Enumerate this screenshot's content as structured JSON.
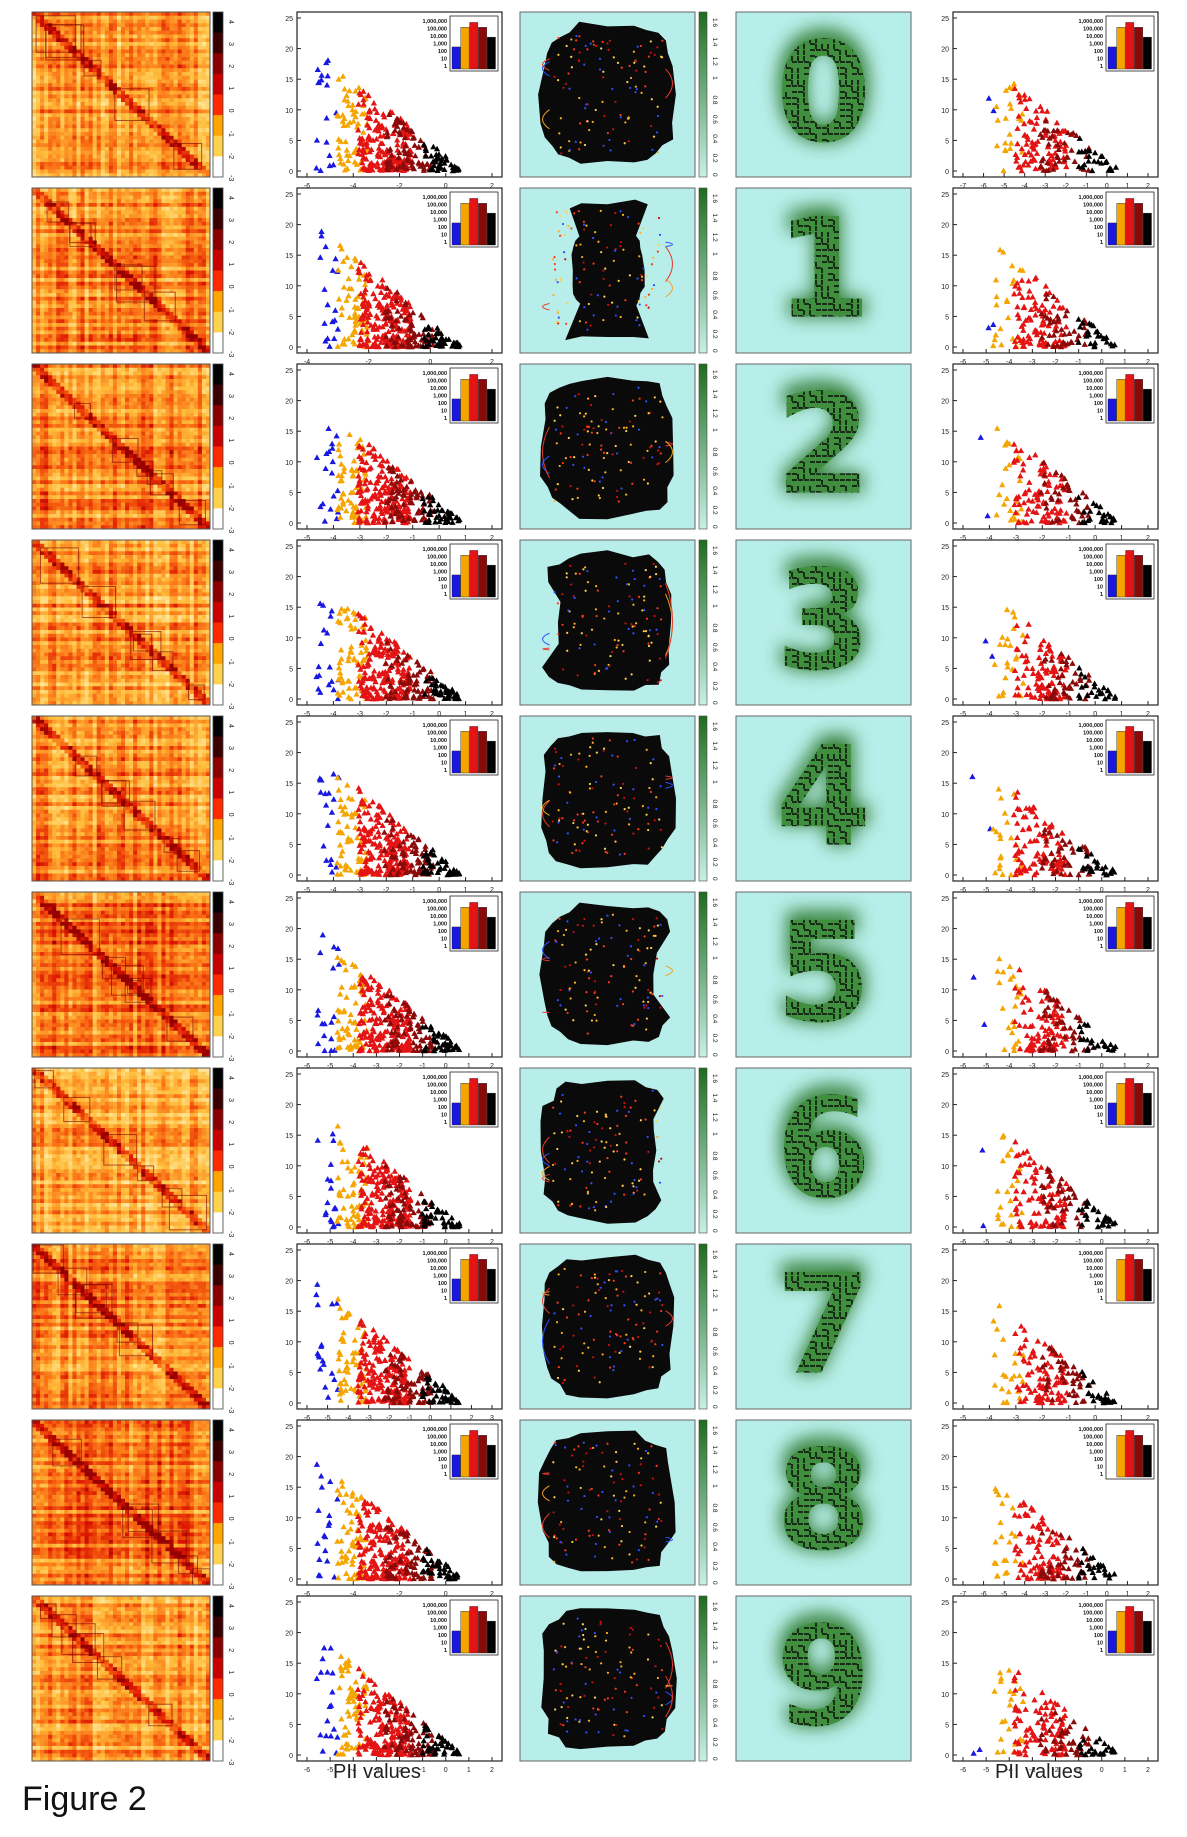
{
  "figure_label": "Figure 2",
  "bottom_labels": {
    "scatter_column_xlabel": "PII values",
    "right_column_xlabel": "PII values"
  },
  "colors": {
    "heatmap_low": "#fff3b0",
    "heatmap_mid": "#ff7a14",
    "heatmap_high": "#d40000",
    "heatmap_dark": "#2a0000",
    "scatter_blue": "#1818e0",
    "scatter_orange": "#f5a500",
    "scatter_red": "#e41414",
    "scatter_darkred": "#8a0a0a",
    "scatter_black": "#000000",
    "panel_cyan": "#b8eeea",
    "green_shape": "#2f7a2f",
    "green_bar": "#3c8c3c"
  },
  "chart_data": [
    {
      "panel": "column-1",
      "type": "heatmap",
      "rows": 10,
      "description_of_rows": [
        "digit 0",
        "digit 1",
        "digit 2",
        "digit 3",
        "digit 4",
        "digit 5",
        "digit 6",
        "digit 7",
        "digit 8",
        "digit 9"
      ],
      "colorbar_ticks": [
        "4",
        "3",
        "2",
        "1",
        "0",
        "-1",
        "-2",
        "-3"
      ]
    },
    {
      "panel": "column-2",
      "type": "scatter",
      "ylim": [
        0,
        25
      ],
      "yticks": [
        "0",
        "5",
        "10",
        "15",
        "20",
        "25"
      ],
      "series": [
        {
          "color": "blue"
        },
        {
          "color": "orange"
        },
        {
          "color": "red"
        },
        {
          "color": "darkred"
        },
        {
          "color": "black"
        }
      ],
      "legend_bars": [
        "1,000,000",
        "100,000",
        "10,000",
        "1,000",
        "100",
        "10",
        "1"
      ],
      "rows": [
        {
          "xticks": [
            "-6",
            "-4",
            "-2",
            "0",
            "2"
          ]
        },
        {
          "xticks": [
            "-4",
            "-2",
            "0",
            "2"
          ]
        },
        {
          "xticks": [
            "-5",
            "-4",
            "-3",
            "-2",
            "-1",
            "0",
            "1",
            "2"
          ]
        },
        {
          "xticks": [
            "-5",
            "-4",
            "-3",
            "-2",
            "-1",
            "0",
            "1",
            "2"
          ]
        },
        {
          "xticks": [
            "-5",
            "-4",
            "-3",
            "-2",
            "-1",
            "0",
            "1",
            "2"
          ]
        },
        {
          "xticks": [
            "-6",
            "-5",
            "-4",
            "-3",
            "-2",
            "-1",
            "0",
            "1",
            "2"
          ]
        },
        {
          "xticks": [
            "-6",
            "-5",
            "-4",
            "-3",
            "-2",
            "-1",
            "0",
            "1",
            "2"
          ]
        },
        {
          "xticks": [
            "-6",
            "-5",
            "-4",
            "-3",
            "-2",
            "-1",
            "0",
            "1",
            "2",
            "3"
          ]
        },
        {
          "xticks": [
            "-6",
            "-4",
            "-2",
            "0",
            "2"
          ]
        },
        {
          "xticks": [
            "-6",
            "-5",
            "-4",
            "-3",
            "-2",
            "-1",
            "0",
            "1",
            "2"
          ]
        }
      ]
    },
    {
      "panel": "column-3",
      "type": "network-map",
      "colorbar_ticks": [
        "1.6",
        "1.4",
        "1.2",
        "1",
        "0.8",
        "0.6",
        "0.4",
        "0.2",
        "0"
      ]
    },
    {
      "panel": "column-4",
      "type": "lattice-digit",
      "digits": [
        "0",
        "1",
        "2",
        "3",
        "4",
        "5",
        "6",
        "7",
        "8",
        "9"
      ]
    },
    {
      "panel": "column-5",
      "type": "scatter",
      "ylim": [
        0,
        25
      ],
      "yticks": [
        "0",
        "5",
        "10",
        "15",
        "20",
        "25"
      ],
      "legend_bars": [
        "1,000,000",
        "100,000",
        "10,000",
        "1,000",
        "100",
        "10",
        "1"
      ],
      "rows": [
        {
          "xticks": [
            "-7",
            "-6",
            "-5",
            "-4",
            "-3",
            "-2",
            "-1",
            "0",
            "1",
            "2"
          ]
        },
        {
          "xticks": [
            "-6",
            "-5",
            "-4",
            "-3",
            "-2",
            "-1",
            "0",
            "1",
            "2"
          ]
        },
        {
          "xticks": [
            "-5",
            "-4",
            "-3",
            "-2",
            "-1",
            "0",
            "1",
            "2"
          ]
        },
        {
          "xticks": [
            "-5",
            "-4",
            "-3",
            "-2",
            "-1",
            "0",
            "1",
            "2"
          ]
        },
        {
          "xticks": [
            "-6",
            "-5",
            "-4",
            "-3",
            "-2",
            "-1",
            "0",
            "1",
            "2"
          ]
        },
        {
          "xticks": [
            "-6",
            "-5",
            "-4",
            "-3",
            "-2",
            "-1",
            "0",
            "1",
            "2"
          ]
        },
        {
          "xticks": [
            "-6",
            "-5",
            "-4",
            "-3",
            "-2",
            "-1",
            "0",
            "1",
            "2"
          ]
        },
        {
          "xticks": [
            "-5",
            "-4",
            "-3",
            "-2",
            "-1",
            "0",
            "1",
            "2"
          ]
        },
        {
          "xticks": [
            "-7",
            "-6",
            "-5",
            "-4",
            "-3",
            "-2",
            "-1",
            "0",
            "1",
            "2"
          ]
        },
        {
          "xticks": [
            "-6",
            "-5",
            "-4",
            "-3",
            "-2",
            "-1",
            "0",
            "1",
            "2"
          ]
        }
      ]
    }
  ]
}
